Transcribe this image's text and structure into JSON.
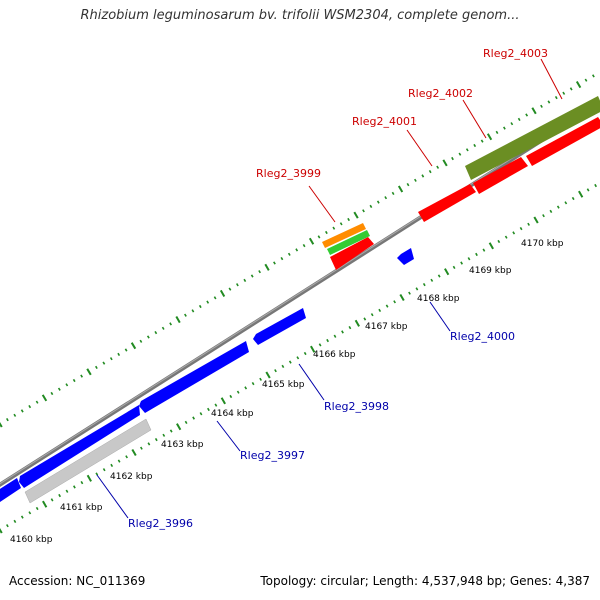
{
  "title": "Rhizobium leguminosarum bv. trifolii WSM2304, complete genom...",
  "footer": {
    "accession": "Accession: NC_011369",
    "summary": "Topology: circular; Length: 4,537,948 bp; Genes: 4,387"
  },
  "scale": {
    "unit": "kbp",
    "ticks": [
      4160,
      4161,
      4162,
      4163,
      4164,
      4165,
      4166,
      4167,
      4168,
      4169,
      4170
    ]
  },
  "colors": {
    "forward_gene": "#ff0000",
    "reverse_gene": "#0000ff",
    "forward_label": "#cc0000",
    "reverse_label": "#0000aa",
    "backbone": "#888888",
    "dots": "#228B22",
    "orange_feature": "#ff8c00",
    "green_feature": "#33cc33",
    "olive_feature": "#6b8e23",
    "grey_feature": "#c8c8c8"
  },
  "genes": [
    {
      "locus": "Rleg2_3996",
      "strand": "reverse"
    },
    {
      "locus": "Rleg2_3997",
      "strand": "reverse"
    },
    {
      "locus": "Rleg2_3998",
      "strand": "reverse"
    },
    {
      "locus": "Rleg2_3999",
      "strand": "forward"
    },
    {
      "locus": "Rleg2_4000",
      "strand": "reverse"
    },
    {
      "locus": "Rleg2_4001",
      "strand": "forward"
    },
    {
      "locus": "Rleg2_4002",
      "strand": "forward"
    },
    {
      "locus": "Rleg2_4003",
      "strand": "forward"
    }
  ]
}
